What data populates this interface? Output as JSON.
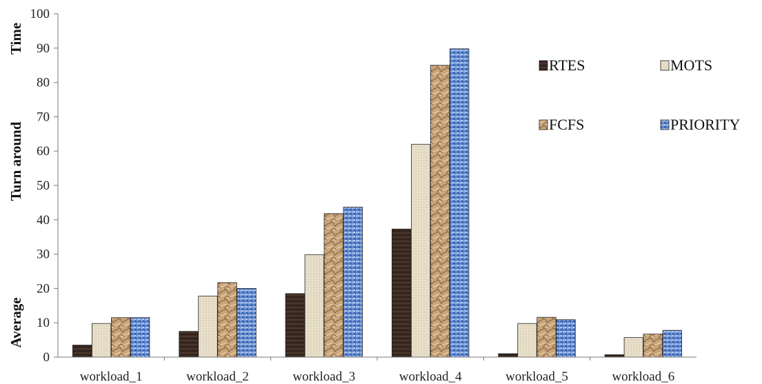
{
  "chart_data": {
    "type": "bar",
    "ylabel_parts": [
      "Average",
      "Turn around",
      "Time"
    ],
    "ylim": [
      0,
      100
    ],
    "yticks": [
      0,
      10,
      20,
      30,
      40,
      50,
      60,
      70,
      80,
      90,
      100
    ],
    "grid": false,
    "legend_position": "top-right",
    "categories": [
      "workload_1",
      "workload_2",
      "workload_3",
      "workload_4",
      "workload_5",
      "workload_6"
    ],
    "series": [
      {
        "name": "RTES",
        "color": "#3b2a22",
        "pattern": "dark",
        "values": [
          3.5,
          7.5,
          18.5,
          37.3,
          1.0,
          0.7
        ]
      },
      {
        "name": "MOTS",
        "color": "#e3d9c3",
        "pattern": "linen",
        "values": [
          9.8,
          17.8,
          29.8,
          62.0,
          9.8,
          5.7
        ]
      },
      {
        "name": "FCFS",
        "color": "#c9a57c",
        "pattern": "crumpled",
        "values": [
          11.5,
          21.7,
          41.8,
          85.0,
          11.6,
          6.7
        ]
      },
      {
        "name": "PRIORITY",
        "color": "#6a8fd0",
        "pattern": "blue-mosaic",
        "values": [
          11.5,
          20.0,
          43.7,
          89.8,
          10.9,
          7.8
        ]
      }
    ]
  }
}
